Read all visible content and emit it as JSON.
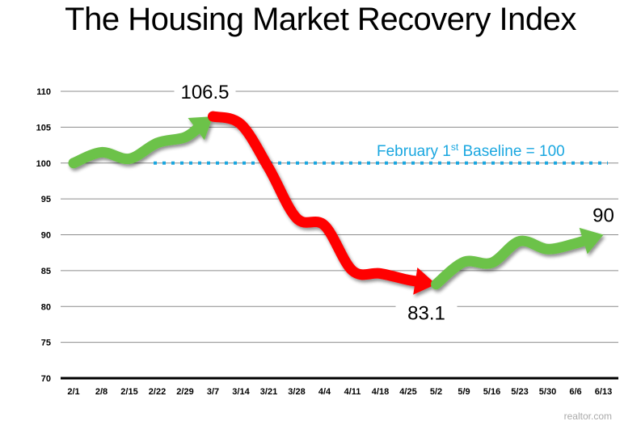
{
  "chart_data": {
    "type": "line",
    "title": "The Housing Market Recovery Index",
    "xlabel": "",
    "ylabel": "",
    "ylim": [
      70,
      110
    ],
    "yticks": [
      70,
      75,
      80,
      85,
      90,
      95,
      100,
      105,
      110
    ],
    "grid": true,
    "categories": [
      "2/1",
      "2/8",
      "2/15",
      "2/22",
      "2/29",
      "3/7",
      "3/14",
      "3/21",
      "3/28",
      "4/4",
      "4/11",
      "4/18",
      "4/25",
      "5/2",
      "5/9",
      "5/16",
      "5/23",
      "5/30",
      "6/6",
      "6/13"
    ],
    "series": [
      {
        "name": "Recovery Index",
        "values": [
          100,
          101.5,
          100.6,
          102.8,
          103.6,
          106.5,
          105.4,
          99.3,
          92.3,
          91.3,
          85.0,
          84.6,
          83.7,
          83.1,
          86.2,
          86.1,
          89.1,
          88.0,
          88.8,
          90
        ],
        "segments": [
          {
            "name": "rise",
            "from": "2/1",
            "to": "3/7",
            "color": "#6cc24a"
          },
          {
            "name": "decline",
            "from": "3/7",
            "to": "5/2",
            "color": "#ff0000"
          },
          {
            "name": "recovery",
            "from": "5/2",
            "to": "6/13",
            "color": "#6cc24a"
          }
        ]
      }
    ],
    "reference_line": {
      "value": 100,
      "label_main": "February 1",
      "label_sup": "st",
      "label_rest": " Baseline = 100",
      "color": "#1aa7e0",
      "style": "dotted"
    },
    "annotations": [
      {
        "text": "106.5",
        "category": "3/7",
        "value": 106.5
      },
      {
        "text": "83.1",
        "category": "5/2",
        "value": 83.1
      },
      {
        "text": "90",
        "category": "6/13",
        "value": 90
      }
    ],
    "source": "realtor.com"
  }
}
